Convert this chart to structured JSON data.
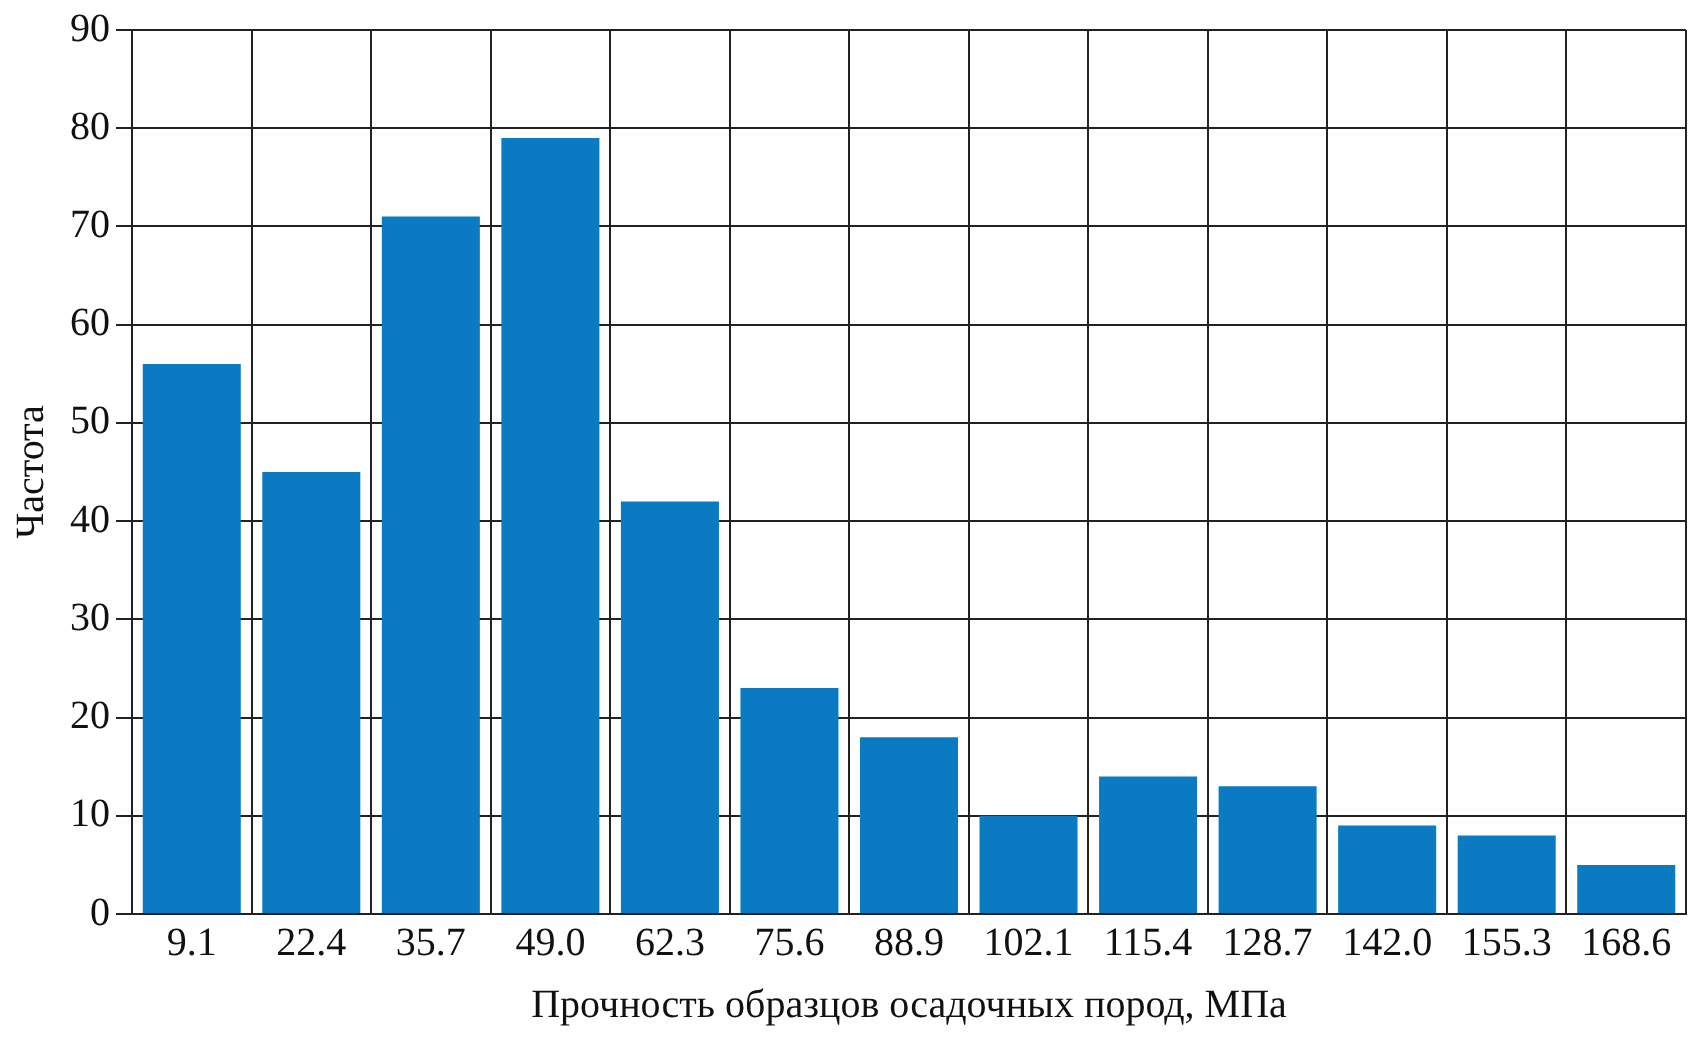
{
  "chart_data": {
    "type": "bar",
    "xlabel": "Прочность образцов осадочных пород, МПа",
    "ylabel": "Частота",
    "categories": [
      "9.1",
      "22.4",
      "35.7",
      "49.0",
      "62.3",
      "75.6",
      "88.9",
      "102.1",
      "115.4",
      "128.7",
      "142.0",
      "155.3",
      "168.6"
    ],
    "values": [
      56,
      45,
      71,
      79,
      42,
      23,
      18,
      10,
      14,
      13,
      9,
      8,
      5
    ],
    "color": "#0a7bc2",
    "ylim": [
      0,
      90
    ],
    "yticks": [
      0,
      10,
      20,
      30,
      40,
      50,
      60,
      70,
      80,
      90
    ],
    "grid": true,
    "legend": false
  }
}
